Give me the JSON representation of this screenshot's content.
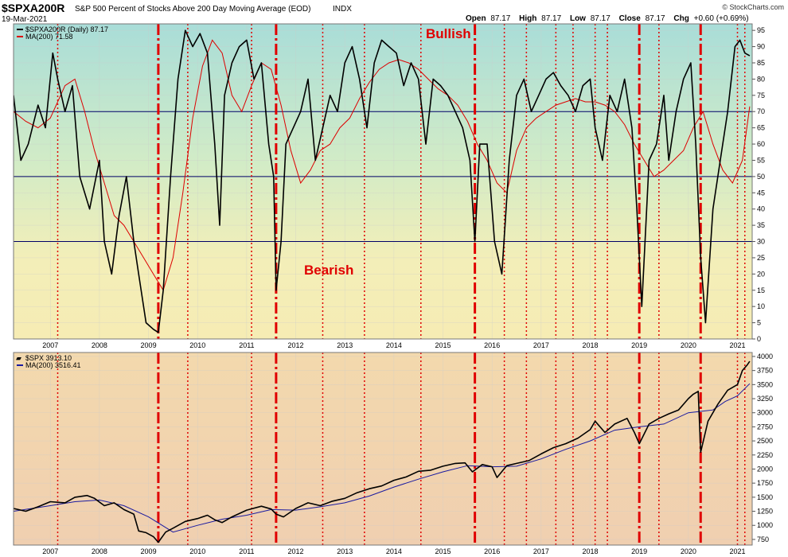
{
  "header": {
    "symbol": "$SPXA200R",
    "description": "S&P 500 Percent of Stocks Above 200 Day Moving Average (EOD)",
    "exchange": "INDX",
    "date": "19-Mar-2021",
    "open_label": "Open",
    "open": "87.17",
    "high_label": "High",
    "high": "87.17",
    "low_label": "Low",
    "low": "87.17",
    "close_label": "Close",
    "close": "87.17",
    "chg_label": "Chg",
    "chg": "+0.60 (+0.69%)",
    "watermark": "© StockCharts.com"
  },
  "annotations": {
    "bullish": "Bullish",
    "bearish": "Bearish"
  },
  "colors": {
    "price_line": "#000000",
    "ma_top": "#dd0000",
    "ma_bottom": "#1a1aa0",
    "marker_line": "#e00000",
    "hline": "#000066",
    "grid": "#cccccc"
  },
  "chart_data": [
    {
      "type": "line",
      "panel": "top",
      "legend": [
        {
          "label": "$SPXA200R (Daily) 87.17",
          "color": "#000000"
        },
        {
          "label": "MA(200) 71.58",
          "color": "#dd0000"
        }
      ],
      "x_ticks": [
        "2007",
        "2008",
        "2009",
        "2010",
        "2011",
        "2012",
        "2013",
        "2014",
        "2015",
        "2016",
        "2017",
        "2018",
        "2019",
        "2020",
        "2021"
      ],
      "x_range": [
        2006.25,
        2021.3
      ],
      "ylim": [
        0,
        97
      ],
      "y_ticks": [
        0,
        5,
        10,
        15,
        20,
        25,
        30,
        35,
        40,
        45,
        50,
        55,
        60,
        65,
        70,
        75,
        80,
        85,
        90,
        95
      ],
      "reference_lines": [
        30,
        50,
        70
      ],
      "series": [
        {
          "name": "$SPXA200R",
          "x": [
            2006.25,
            2006.4,
            2006.55,
            2006.75,
            2006.9,
            2007.05,
            2007.15,
            2007.3,
            2007.45,
            2007.6,
            2007.8,
            2008.0,
            2008.1,
            2008.25,
            2008.4,
            2008.55,
            2008.7,
            2008.8,
            2008.95,
            2009.1,
            2009.2,
            2009.3,
            2009.45,
            2009.6,
            2009.75,
            2009.9,
            2010.05,
            2010.2,
            2010.35,
            2010.45,
            2010.55,
            2010.7,
            2010.85,
            2011.0,
            2011.15,
            2011.3,
            2011.45,
            2011.55,
            2011.6,
            2011.7,
            2011.8,
            2011.95,
            2012.1,
            2012.25,
            2012.4,
            2012.55,
            2012.7,
            2012.85,
            2013.0,
            2013.15,
            2013.3,
            2013.45,
            2013.6,
            2013.75,
            2013.9,
            2014.05,
            2014.2,
            2014.35,
            2014.5,
            2014.65,
            2014.8,
            2014.95,
            2015.1,
            2015.25,
            2015.4,
            2015.55,
            2015.65,
            2015.75,
            2015.9,
            2016.05,
            2016.2,
            2016.35,
            2016.5,
            2016.65,
            2016.8,
            2016.95,
            2017.1,
            2017.25,
            2017.4,
            2017.55,
            2017.7,
            2017.85,
            2018.0,
            2018.1,
            2018.25,
            2018.4,
            2018.55,
            2018.7,
            2018.85,
            2018.95,
            2019.05,
            2019.2,
            2019.35,
            2019.5,
            2019.6,
            2019.75,
            2019.9,
            2020.05,
            2020.15,
            2020.25,
            2020.35,
            2020.5,
            2020.65,
            2020.8,
            2020.95,
            2021.05,
            2021.15,
            2021.25
          ],
          "values": [
            75,
            55,
            60,
            72,
            65,
            88,
            80,
            70,
            78,
            50,
            40,
            55,
            30,
            20,
            38,
            50,
            30,
            20,
            5,
            3,
            2,
            15,
            50,
            80,
            95,
            90,
            94,
            88,
            60,
            35,
            75,
            85,
            90,
            92,
            80,
            85,
            60,
            50,
            15,
            30,
            60,
            65,
            70,
            80,
            55,
            65,
            75,
            70,
            85,
            90,
            80,
            65,
            85,
            92,
            90,
            88,
            78,
            85,
            80,
            60,
            80,
            78,
            75,
            70,
            65,
            55,
            30,
            60,
            60,
            30,
            20,
            55,
            75,
            80,
            70,
            75,
            80,
            82,
            78,
            75,
            70,
            78,
            80,
            65,
            55,
            75,
            70,
            80,
            65,
            40,
            10,
            55,
            60,
            75,
            55,
            70,
            80,
            85,
            60,
            25,
            5,
            40,
            55,
            70,
            90,
            92,
            88,
            87.17
          ]
        },
        {
          "name": "MA(200)",
          "x": [
            2006.25,
            2006.5,
            2006.75,
            2007.0,
            2007.3,
            2007.5,
            2007.7,
            2007.9,
            2008.1,
            2008.3,
            2008.5,
            2008.7,
            2008.9,
            2009.1,
            2009.3,
            2009.5,
            2009.7,
            2009.9,
            2010.1,
            2010.3,
            2010.5,
            2010.7,
            2010.9,
            2011.1,
            2011.3,
            2011.5,
            2011.7,
            2011.9,
            2012.1,
            2012.3,
            2012.5,
            2012.7,
            2012.9,
            2013.1,
            2013.3,
            2013.5,
            2013.7,
            2013.9,
            2014.1,
            2014.3,
            2014.5,
            2014.7,
            2014.9,
            2015.1,
            2015.3,
            2015.5,
            2015.7,
            2015.9,
            2016.1,
            2016.3,
            2016.5,
            2016.7,
            2016.9,
            2017.1,
            2017.3,
            2017.5,
            2017.7,
            2017.9,
            2018.1,
            2018.3,
            2018.5,
            2018.7,
            2018.9,
            2019.1,
            2019.3,
            2019.5,
            2019.7,
            2019.9,
            2020.1,
            2020.3,
            2020.5,
            2020.7,
            2020.9,
            2021.1,
            2021.25
          ],
          "values": [
            70,
            67,
            65,
            68,
            78,
            80,
            70,
            58,
            48,
            38,
            35,
            30,
            25,
            20,
            15,
            25,
            45,
            68,
            84,
            92,
            88,
            75,
            70,
            78,
            85,
            83,
            72,
            58,
            48,
            52,
            58,
            60,
            65,
            68,
            74,
            79,
            83,
            85,
            86,
            85,
            83,
            80,
            77,
            75,
            72,
            67,
            60,
            55,
            48,
            45,
            58,
            65,
            68,
            70,
            72,
            73,
            74,
            73,
            73,
            72,
            70,
            66,
            60,
            55,
            50,
            52,
            55,
            58,
            65,
            70,
            60,
            52,
            48,
            55,
            71.58
          ]
        }
      ]
    },
    {
      "type": "line",
      "panel": "bottom",
      "legend": [
        {
          "label": "$SPX 3913.10",
          "color": "#000000"
        },
        {
          "label": "MA(200) 3516.41",
          "color": "#1a1aa0"
        }
      ],
      "x_ticks": [
        "2007",
        "2008",
        "2009",
        "2010",
        "2011",
        "2012",
        "2013",
        "2014",
        "2015",
        "2016",
        "2017",
        "2018",
        "2019",
        "2020",
        "2021"
      ],
      "x_range": [
        2006.25,
        2021.3
      ],
      "ylim": [
        650,
        4070
      ],
      "y_ticks": [
        750,
        1000,
        1250,
        1500,
        1750,
        2000,
        2250,
        2500,
        2750,
        3000,
        3250,
        3500,
        3750,
        4000
      ],
      "series": [
        {
          "name": "$SPX",
          "x": [
            2006.25,
            2006.5,
            2006.75,
            2007.0,
            2007.3,
            2007.5,
            2007.75,
            2007.9,
            2008.1,
            2008.3,
            2008.5,
            2008.7,
            2008.8,
            2008.95,
            2009.1,
            2009.2,
            2009.35,
            2009.5,
            2009.75,
            2010.0,
            2010.2,
            2010.35,
            2010.5,
            2010.7,
            2011.0,
            2011.3,
            2011.5,
            2011.6,
            2011.75,
            2012.0,
            2012.25,
            2012.5,
            2012.75,
            2013.0,
            2013.25,
            2013.5,
            2013.75,
            2014.0,
            2014.25,
            2014.5,
            2014.75,
            2015.0,
            2015.25,
            2015.45,
            2015.6,
            2015.8,
            2016.0,
            2016.1,
            2016.3,
            2016.5,
            2016.75,
            2017.0,
            2017.25,
            2017.5,
            2017.75,
            2018.0,
            2018.1,
            2018.3,
            2018.5,
            2018.75,
            2018.9,
            2019.0,
            2019.2,
            2019.4,
            2019.6,
            2019.8,
            2020.0,
            2020.1,
            2020.2,
            2020.25,
            2020.4,
            2020.6,
            2020.8,
            2021.0,
            2021.1,
            2021.2,
            2021.25
          ],
          "values": [
            1300,
            1250,
            1330,
            1420,
            1400,
            1500,
            1530,
            1480,
            1350,
            1400,
            1280,
            1200,
            900,
            870,
            800,
            700,
            880,
            950,
            1070,
            1120,
            1180,
            1100,
            1050,
            1150,
            1270,
            1340,
            1290,
            1200,
            1150,
            1300,
            1400,
            1350,
            1430,
            1480,
            1580,
            1650,
            1700,
            1800,
            1860,
            1960,
            1980,
            2050,
            2100,
            2110,
            1950,
            2080,
            2040,
            1850,
            2060,
            2100,
            2150,
            2270,
            2380,
            2450,
            2550,
            2700,
            2850,
            2650,
            2800,
            2900,
            2650,
            2450,
            2800,
            2900,
            2980,
            3050,
            3250,
            3330,
            3380,
            2300,
            2850,
            3150,
            3400,
            3500,
            3750,
            3850,
            3913.1
          ]
        },
        {
          "name": "MA(200)",
          "x": [
            2006.25,
            2007.0,
            2007.5,
            2008.0,
            2008.5,
            2009.0,
            2009.5,
            2010.0,
            2010.5,
            2011.0,
            2011.5,
            2012.0,
            2012.5,
            2013.0,
            2013.5,
            2014.0,
            2014.5,
            2015.0,
            2015.5,
            2016.0,
            2016.5,
            2017.0,
            2017.5,
            2018.0,
            2018.5,
            2019.0,
            2019.5,
            2020.0,
            2020.5,
            2020.75,
            2021.0,
            2021.25
          ],
          "values": [
            1250,
            1350,
            1420,
            1450,
            1350,
            1150,
            880,
            1000,
            1110,
            1180,
            1280,
            1270,
            1330,
            1400,
            1520,
            1680,
            1820,
            1950,
            2060,
            2040,
            2050,
            2180,
            2350,
            2500,
            2690,
            2750,
            2800,
            3000,
            3050,
            3200,
            3300,
            3516.41
          ]
        }
      ]
    }
  ],
  "markers": {
    "dashed": [
      2009.2,
      2011.6,
      2015.65,
      2019.0,
      2020.25
    ],
    "dotted": [
      2007.15,
      2009.8,
      2011.1,
      2012.55,
      2013.4,
      2014.55,
      2016.25,
      2016.7,
      2017.3,
      2017.65,
      2018.1,
      2018.35,
      2019.4,
      2021.0,
      2021.15
    ]
  }
}
